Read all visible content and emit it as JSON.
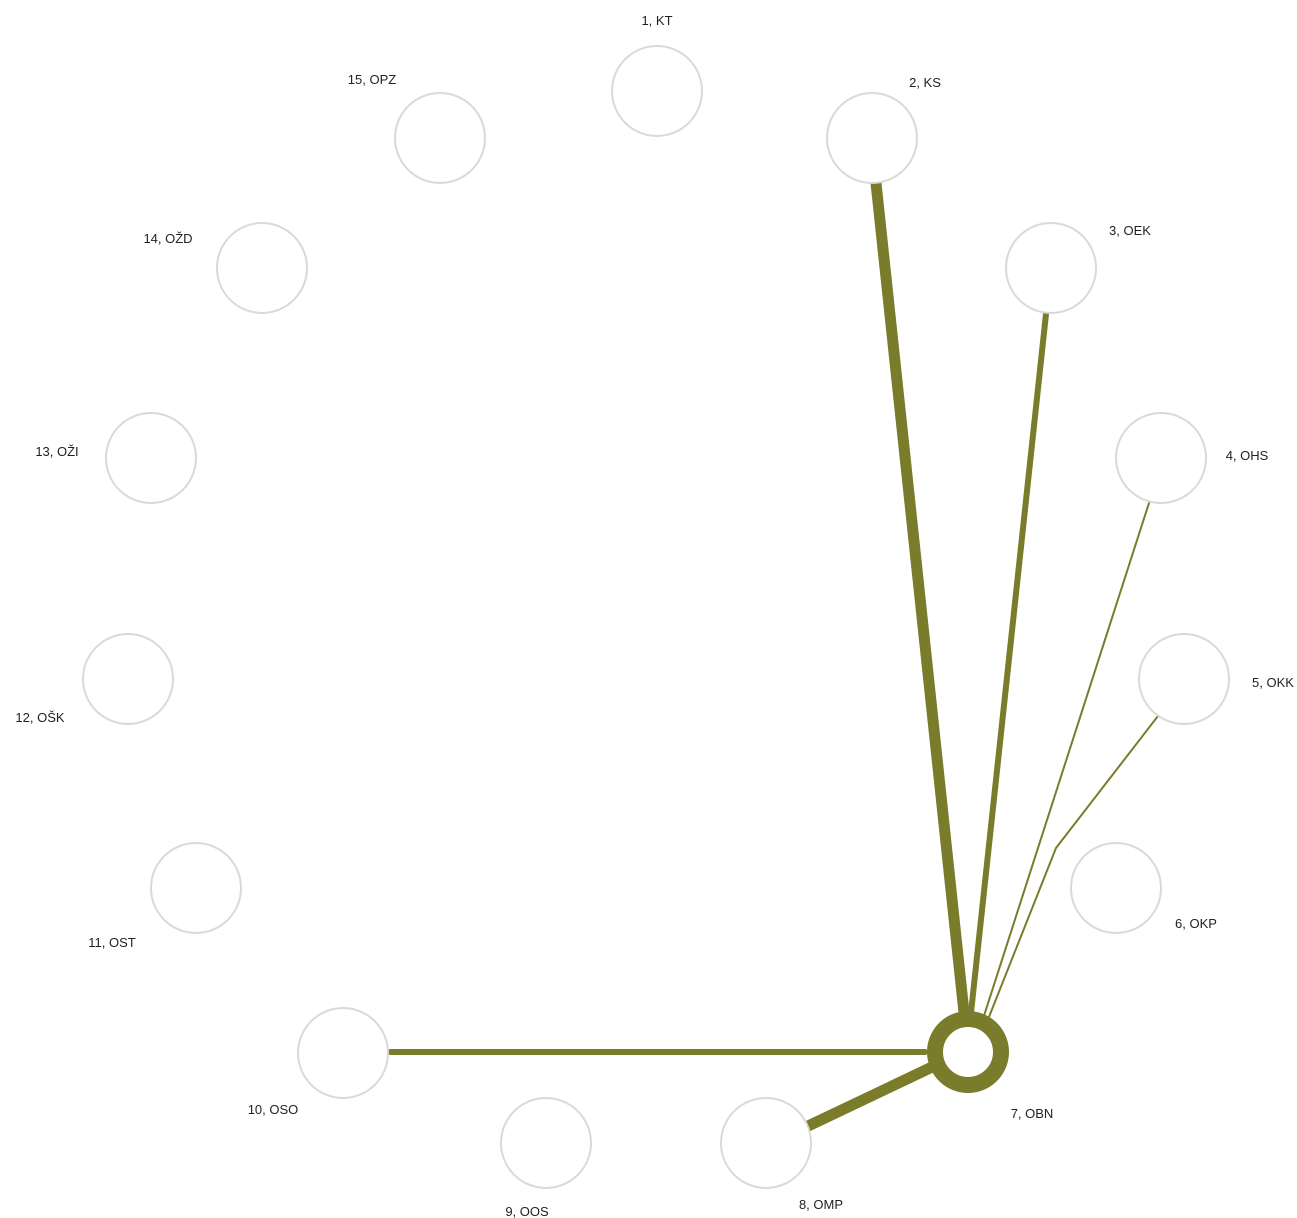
{
  "colors": {
    "edge": "#7b7b2c",
    "node_stroke": "#d9d9d9",
    "highlight_node_stroke": "#7b7b2c",
    "label": "#222222"
  },
  "nodes": [
    {
      "id": "1",
      "label": "1, KT"
    },
    {
      "id": "2",
      "label": "2, KS"
    },
    {
      "id": "3",
      "label": "3, OEK"
    },
    {
      "id": "4",
      "label": "4, OHS"
    },
    {
      "id": "5",
      "label": "5, OKK"
    },
    {
      "id": "6",
      "label": "6, OKP"
    },
    {
      "id": "7",
      "label": "7, OBN",
      "highlighted": true
    },
    {
      "id": "8",
      "label": "8, OMP"
    },
    {
      "id": "9",
      "label": "9, OOS"
    },
    {
      "id": "10",
      "label": "10, OSO"
    },
    {
      "id": "11",
      "label": "11, OST"
    },
    {
      "id": "12",
      "label": "12, OŠK"
    },
    {
      "id": "13",
      "label": "13, OŽI"
    },
    {
      "id": "14",
      "label": "14, OŽD"
    },
    {
      "id": "15",
      "label": "15, OPZ"
    }
  ],
  "edges": [
    {
      "from": "7",
      "to": "2",
      "weight": 5
    },
    {
      "from": "7",
      "to": "3",
      "weight": 3
    },
    {
      "from": "7",
      "to": "4",
      "weight": 1
    },
    {
      "from": "7",
      "to": "5",
      "weight": 1
    },
    {
      "from": "7",
      "to": "8",
      "weight": 5
    },
    {
      "from": "7",
      "to": "10",
      "weight": 3
    }
  ]
}
